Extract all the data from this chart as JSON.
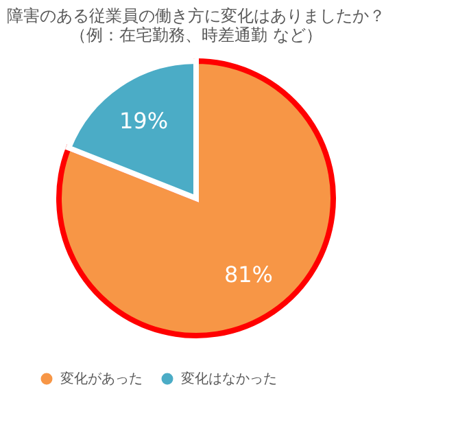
{
  "chart_data": {
    "type": "pie",
    "title": [
      "障害のある従業員の働き方に変化はありましたか？",
      "（例：在宅勤務、時差通勤 など）"
    ],
    "categories": [
      "変化があった",
      "変化はなかった"
    ],
    "values": [
      81,
      19
    ],
    "colors": [
      "#f79646",
      "#4bacc6"
    ],
    "value_labels": [
      "81%",
      "19%"
    ],
    "legend": "bottom"
  }
}
